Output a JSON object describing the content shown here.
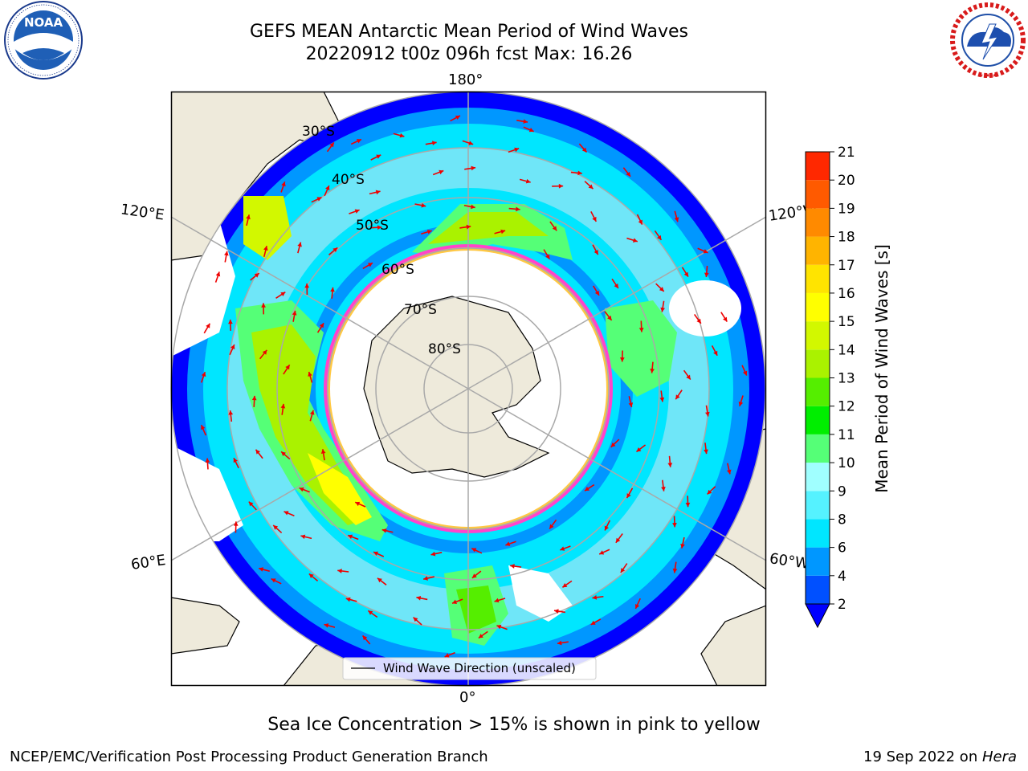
{
  "title": {
    "line1": "GEFS MEAN Antarctic Mean Period of Wind Waves",
    "line2": "20220912 t00z 096h fcst   Max: 16.26"
  },
  "map": {
    "projection": "south-polar-stereographic",
    "lon_labels": {
      "top": "180°",
      "bottom": "0°",
      "upper_left": "120°E",
      "lower_left": "60°E",
      "upper_right": "120°W",
      "lower_right": "60°W"
    },
    "lat_labels": [
      "30°S",
      "40°S",
      "50°S",
      "60°S",
      "70°S",
      "80°S"
    ],
    "ocean_color": "#6fe6f8",
    "land_color": "#eeeadb",
    "sea_ice_colors": [
      "#ff44cc",
      "#ffc843"
    ],
    "arrow_color": "#ee0000"
  },
  "legend": {
    "label": "Wind Wave Direction (unscaled)"
  },
  "colorbar": {
    "label": "Mean Period of Wind Waves [s]",
    "ticks": [
      "2",
      "4",
      "6",
      "8",
      "9",
      "10",
      "11",
      "12",
      "13",
      "14",
      "15",
      "16",
      "17",
      "18",
      "19",
      "20",
      "21"
    ],
    "colors": [
      "#0050ff",
      "#0097ff",
      "#00e6ff",
      "#55f2ff",
      "#a0ffff",
      "#55ff77",
      "#00ee00",
      "#55ee00",
      "#aaf200",
      "#d2f800",
      "#ffff00",
      "#ffe400",
      "#ffb400",
      "#ff8a00",
      "#ff5a00",
      "#ff2800"
    ],
    "under_color": "#0000ff"
  },
  "footnote": "Sea Ice Concentration > 15% is shown in pink to yellow",
  "credits": {
    "left": "NCEP/EMC/Verification Post Processing Product Generation Branch",
    "right_date": "19 Sep 2022 on ",
    "right_host": "Hera"
  },
  "logos": {
    "left": "NOAA",
    "right": "NATIONAL WEATHER SERVICE"
  }
}
